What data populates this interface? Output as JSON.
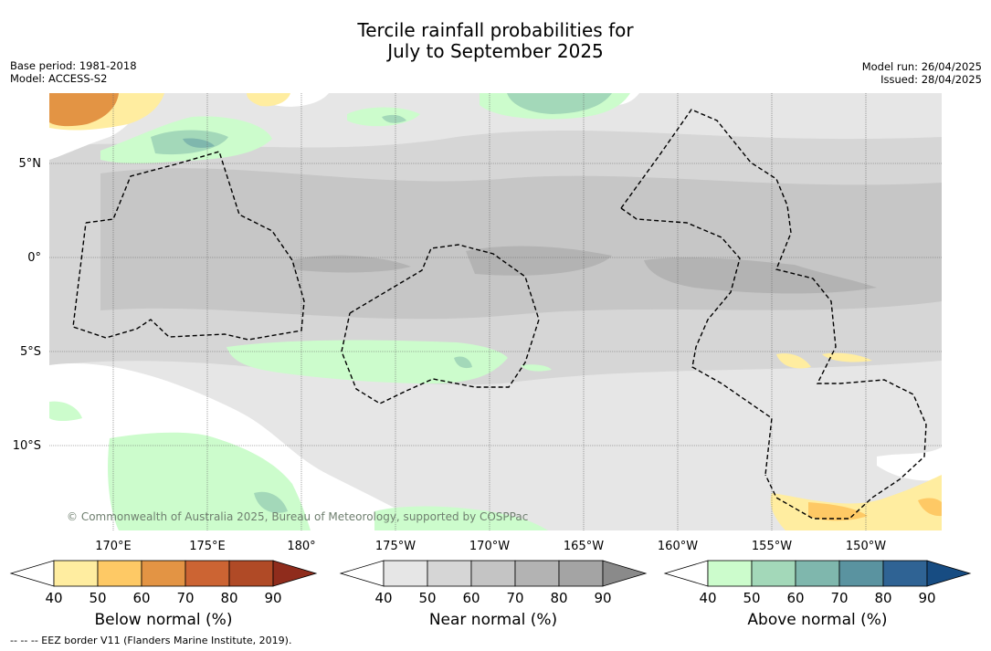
{
  "title_line1": "Tercile rainfall probabilities for",
  "title_line2": "July to September 2025",
  "base_period": "Base period: 1981-2018",
  "model": "Model: ACCESS-S2",
  "model_run": "Model run: 26/04/2025",
  "issued": "Issued: 28/04/2025",
  "copyright": "© Commonwealth of Australia 2025, Bureau of Meteorology, supported by COSPPac",
  "footer": "-- -- -- EEZ border V11 (Flanders Marine Institute, 2019).",
  "lat_labels": [
    "5°N",
    "0°",
    "5°S",
    "10°S"
  ],
  "lon_labels": [
    "170°E",
    "175°E",
    "180°",
    "175°W",
    "170°W",
    "165°W",
    "160°W",
    "155°W",
    "150°W"
  ],
  "colorbars": [
    {
      "label": "Below normal (%)",
      "ticks": [
        "40",
        "50",
        "60",
        "70",
        "80",
        "90"
      ],
      "colors": [
        "#ffeda0",
        "#fec965",
        "#e39444",
        "#cc6433",
        "#b04a26",
        "#8f2c1c"
      ]
    },
    {
      "label": "Near normal (%)",
      "ticks": [
        "40",
        "50",
        "60",
        "70",
        "80",
        "90"
      ],
      "colors": [
        "#e6e6e6",
        "#d6d6d6",
        "#c4c4c4",
        "#b3b3b3",
        "#a4a4a4",
        "#8a8a8a"
      ]
    },
    {
      "label": "Above normal (%)",
      "ticks": [
        "40",
        "50",
        "60",
        "70",
        "80",
        "90"
      ],
      "colors": [
        "#ccfccc",
        "#a3d8b9",
        "#7fb7ad",
        "#5a93a0",
        "#2f6394",
        "#174c82"
      ]
    }
  ]
}
